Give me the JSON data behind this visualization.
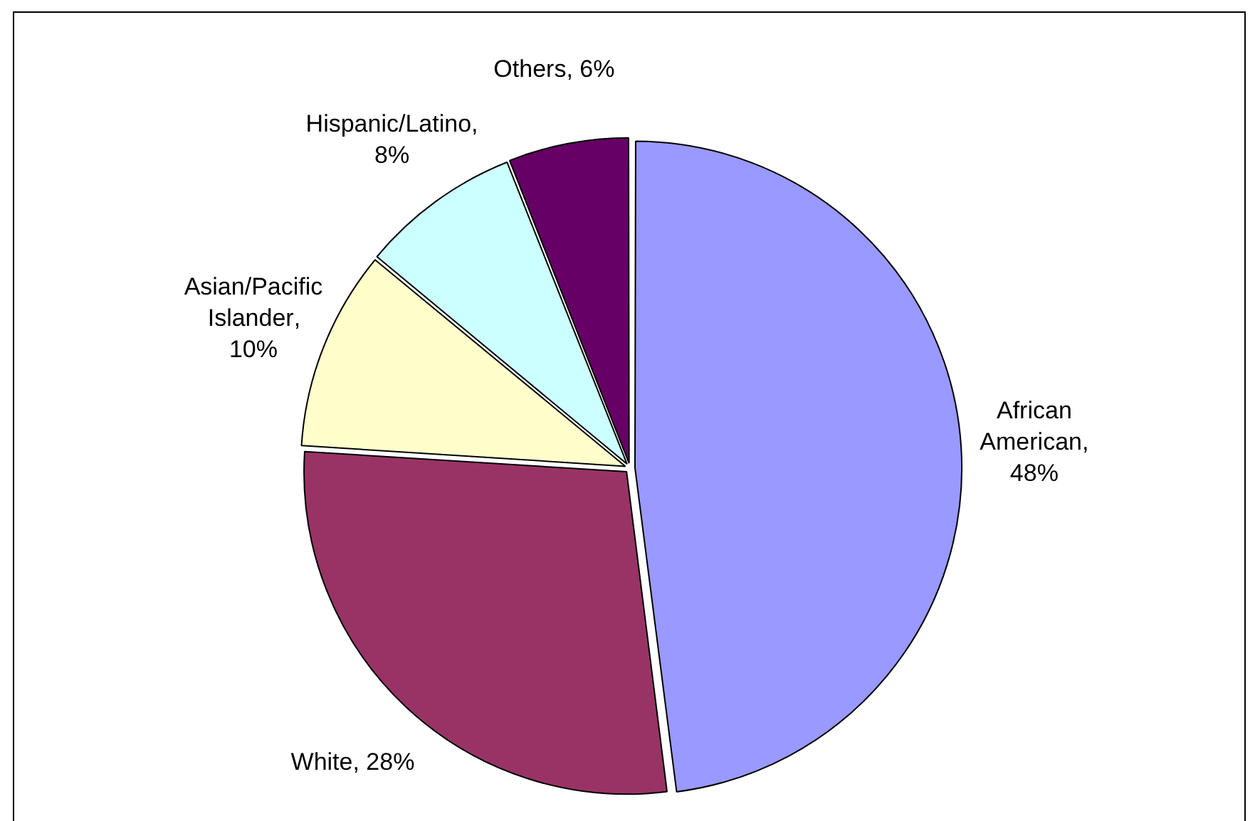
{
  "chart_data": {
    "type": "pie",
    "categories": [
      "African American",
      "White",
      "Asian/Pacific Islander",
      "Hispanic/Latino",
      "Others"
    ],
    "values": [
      48,
      28,
      10,
      8,
      6
    ],
    "colors": [
      "#9999ff",
      "#993366",
      "#ffffcc",
      "#ccffff",
      "#660066"
    ],
    "value_labels": [
      ", 48%",
      ", 28%",
      ", 10%",
      ", 8%",
      ", 6%"
    ],
    "legend": false
  }
}
